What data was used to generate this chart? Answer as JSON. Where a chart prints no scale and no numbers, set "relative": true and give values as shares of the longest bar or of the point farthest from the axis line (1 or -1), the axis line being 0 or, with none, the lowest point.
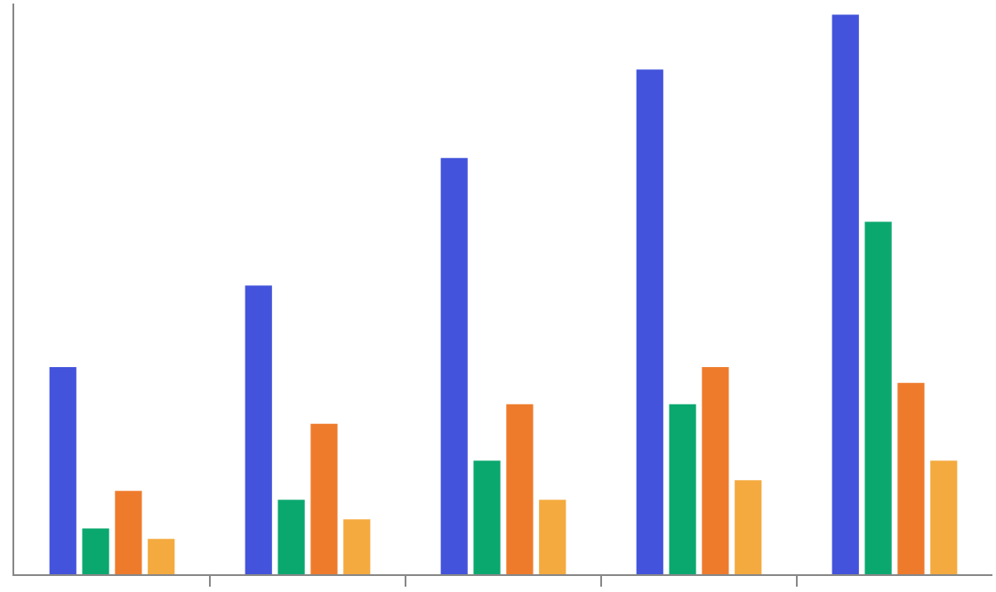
{
  "chart_data": {
    "type": "bar",
    "relative": true,
    "categories": [
      null,
      null,
      null,
      null,
      null
    ],
    "series": [
      {
        "color": "#4353db",
        "values": [
          0.37,
          0.516,
          0.744,
          0.902,
          1
        ]
      },
      {
        "color": "#0aa86f",
        "values": [
          0.082,
          0.133,
          0.203,
          0.304,
          0.63
        ]
      },
      {
        "color": "#ee7b2c",
        "values": [
          0.149,
          0.269,
          0.304,
          0.37,
          0.342
        ]
      },
      {
        "color": "#f4aa3f",
        "values": [
          0.063,
          0.098,
          0.133,
          0.168,
          0.203
        ]
      }
    ],
    "grid": false,
    "tick_labels": false
  }
}
